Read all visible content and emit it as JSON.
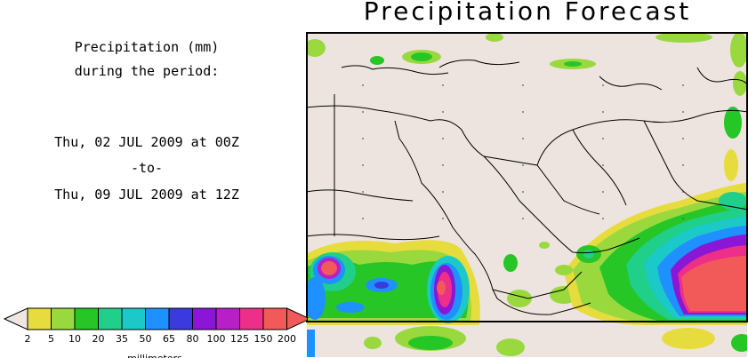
{
  "title": "Precipitation Forecast",
  "info": {
    "line1": "Precipitation (mm)",
    "line2": "during the period:",
    "start": "Thu, 02 JUL 2009 at 00Z",
    "separator": "-to-",
    "end": "Thu, 09 JUL 2009 at 12Z"
  },
  "legend": {
    "labels": [
      "2",
      "5",
      "10",
      "20",
      "35",
      "50",
      "65",
      "80",
      "100",
      "125",
      "150",
      "200"
    ],
    "colors": [
      "#e7dc3e",
      "#9ad93e",
      "#26c626",
      "#1fcf8a",
      "#1cc9c9",
      "#1e90ff",
      "#3a3adf",
      "#8a16d6",
      "#b81fc4",
      "#ee2f8a",
      "#f25a5a"
    ],
    "unit": "millimeters",
    "below_color": "#efe6e1",
    "above_color": "#f25a5a"
  },
  "map": {
    "land_color": "#eee4df",
    "border_color": "#000000"
  }
}
